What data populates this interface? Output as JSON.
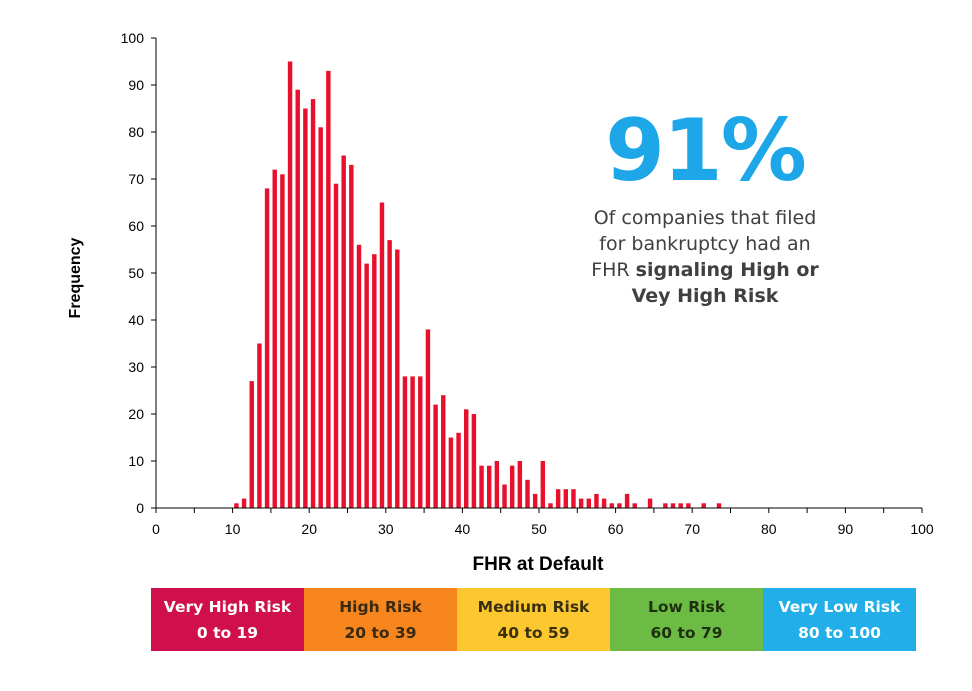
{
  "chart_data": {
    "type": "bar",
    "title": "",
    "xlabel": "FHR at Default",
    "ylabel": "Frequency",
    "xlim": [
      0,
      100
    ],
    "ylim": [
      0,
      100
    ],
    "x_ticks": [
      0,
      10,
      20,
      30,
      40,
      50,
      60,
      70,
      80,
      90,
      100
    ],
    "y_ticks": [
      0,
      10,
      20,
      30,
      40,
      50,
      60,
      70,
      80,
      90,
      100
    ],
    "bar_color": "#E8112D",
    "grid": false,
    "x": [
      10,
      11,
      12,
      13,
      14,
      15,
      16,
      17,
      18,
      19,
      20,
      21,
      22,
      23,
      24,
      25,
      26,
      27,
      28,
      29,
      30,
      31,
      32,
      33,
      34,
      35,
      36,
      37,
      38,
      39,
      40,
      41,
      42,
      43,
      44,
      45,
      46,
      47,
      48,
      49,
      50,
      51,
      52,
      53,
      54,
      55,
      56,
      57,
      58,
      59,
      60,
      61,
      62,
      63,
      64,
      65,
      66,
      67,
      68,
      69,
      70,
      71,
      72,
      73
    ],
    "values": [
      1,
      2,
      27,
      35,
      68,
      72,
      71,
      95,
      89,
      85,
      87,
      81,
      93,
      69,
      75,
      73,
      56,
      52,
      54,
      65,
      57,
      55,
      28,
      28,
      28,
      38,
      22,
      24,
      15,
      16,
      21,
      20,
      9,
      9,
      10,
      5,
      9,
      10,
      6,
      3,
      10,
      1,
      4,
      4,
      4,
      2,
      2,
      3,
      2,
      1,
      1,
      3,
      1,
      0,
      2,
      0,
      1,
      1,
      1,
      1,
      0,
      1,
      0,
      1
    ]
  },
  "callout": {
    "percent": "91%",
    "line1": "Of companies that filed",
    "line2": "for bankruptcy had an",
    "line3_prefix": "FHR ",
    "line3_bold": "signaling High or",
    "line4_bold": "Vey High Risk"
  },
  "legend": {
    "items": [
      {
        "label": "Very High Risk",
        "range": "0 to 19",
        "bg": "#D0104C",
        "color": "#FFFFFF"
      },
      {
        "label": "High Risk",
        "range": "20 to 39",
        "bg": "#F7861E",
        "color": "#3A2A10"
      },
      {
        "label": "Medium Risk",
        "range": "40 to 59",
        "bg": "#FDC82F",
        "color": "#3A3010"
      },
      {
        "label": "Low Risk",
        "range": "60 to 79",
        "bg": "#6CBB45",
        "color": "#1E3010"
      },
      {
        "label": "Very Low Risk",
        "range": "80 to 100",
        "bg": "#22AEE8",
        "color": "#FFFFFF"
      }
    ]
  }
}
